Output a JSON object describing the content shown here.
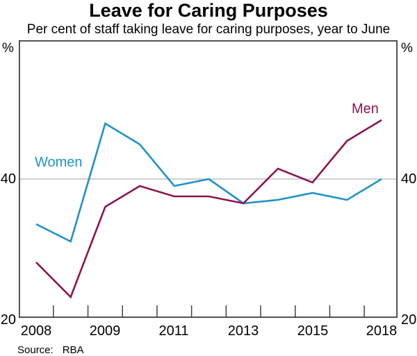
{
  "title": "Leave for Caring Purposes",
  "subtitle": "Per cent of staff taking leave for caring purposes, year to June",
  "source": {
    "label": "Source:",
    "value": "RBA"
  },
  "axes": {
    "unit": "%",
    "upper_tick": "40",
    "lower_tick": "20"
  },
  "chart_data": {
    "type": "line",
    "title": "Leave for Caring Purposes",
    "subtitle": "Per cent of staff taking leave for caring purposes, year to June",
    "ylabel": "%",
    "ylim": [
      20,
      60
    ],
    "gridline_at": 40,
    "y_axis_labels_shown": [
      40,
      20
    ],
    "n_points": 11,
    "x_tick_labels": [
      "2008",
      "2009",
      "2011",
      "2013",
      "2015",
      "2018"
    ],
    "x_tick_positions": [
      0,
      2,
      4,
      6,
      8,
      10
    ],
    "series": [
      {
        "name": "Women",
        "color": "#1e92c6",
        "values": [
          33.5,
          31,
          48,
          45,
          39,
          40,
          36.5,
          37,
          38,
          37,
          40
        ]
      },
      {
        "name": "Men",
        "color": "#8c1452",
        "values": [
          28,
          23,
          36,
          39,
          37.5,
          37.5,
          36.5,
          41.5,
          39.5,
          45.5,
          48.5
        ]
      }
    ],
    "colors": {
      "frame": "#404040",
      "gridline": "#c9c9c9",
      "background": "#ffffff",
      "text": "#000000"
    },
    "legend_position": "inline-labels"
  }
}
